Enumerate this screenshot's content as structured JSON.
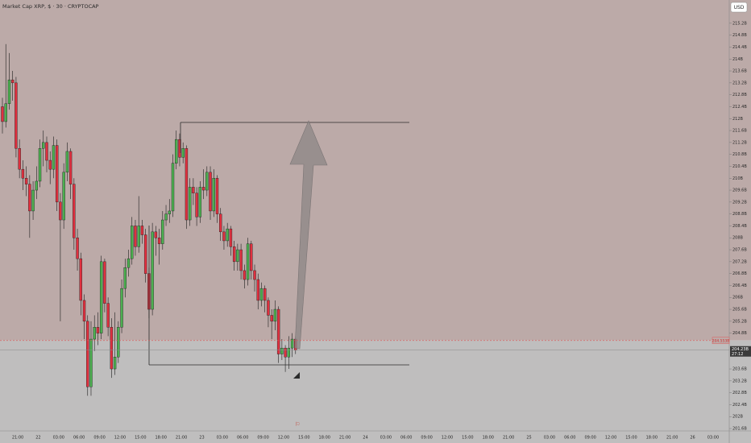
{
  "chart_data": {
    "type": "candlestick",
    "title": "Market Cap XRP, $ · 30 · CRYPTOCAP",
    "currency": "USD",
    "up_color": "#4caf50",
    "down_color": "#e0303f",
    "ylim": [
      201.52,
      215.98
    ],
    "yticks": [
      {
        "value": 215.2,
        "label": "215.2B"
      },
      {
        "value": 214.8,
        "label": "214.8B"
      },
      {
        "value": 214.4,
        "label": "214.4B"
      },
      {
        "value": 214,
        "label": "214B"
      },
      {
        "value": 213.6,
        "label": "213.6B"
      },
      {
        "value": 213.2,
        "label": "213.2B"
      },
      {
        "value": 212.8,
        "label": "212.8B"
      },
      {
        "value": 212.4,
        "label": "212.4B"
      },
      {
        "value": 212,
        "label": "212B"
      },
      {
        "value": 211.6,
        "label": "211.6B"
      },
      {
        "value": 211.2,
        "label": "211.2B"
      },
      {
        "value": 210.8,
        "label": "210.8B"
      },
      {
        "value": 210.4,
        "label": "210.4B"
      },
      {
        "value": 210,
        "label": "210B"
      },
      {
        "value": 209.6,
        "label": "209.6B"
      },
      {
        "value": 209.2,
        "label": "209.2B"
      },
      {
        "value": 208.8,
        "label": "208.8B"
      },
      {
        "value": 208.4,
        "label": "208.4B"
      },
      {
        "value": 208,
        "label": "208B"
      },
      {
        "value": 207.6,
        "label": "207.6B"
      },
      {
        "value": 207.2,
        "label": "207.2B"
      },
      {
        "value": 206.8,
        "label": "206.8B"
      },
      {
        "value": 206.4,
        "label": "206.4B"
      },
      {
        "value": 206,
        "label": "206B"
      },
      {
        "value": 205.6,
        "label": "205.6B"
      },
      {
        "value": 205.2,
        "label": "205.2B"
      },
      {
        "value": 204.8,
        "label": "204.8B"
      },
      {
        "value": 203.6,
        "label": "203.6B"
      },
      {
        "value": 203.2,
        "label": "203.2B"
      },
      {
        "value": 202.8,
        "label": "202.8B"
      },
      {
        "value": 202.4,
        "label": "202.4B"
      },
      {
        "value": 202,
        "label": "202B"
      },
      {
        "value": 201.6,
        "label": "201.6B"
      }
    ],
    "x_labels": [
      "21:00",
      "22",
      "03:00",
      "06:00",
      "09:00",
      "12:00",
      "15:00",
      "18:00",
      "21:00",
      "23",
      "03:00",
      "06:00",
      "09:00",
      "12:00",
      "15:00",
      "18:00",
      "21:00",
      "24",
      "03:00",
      "06:00",
      "09:00",
      "12:00",
      "15:00",
      "18:00",
      "21:00",
      "25",
      "03:00",
      "06:00",
      "09:00",
      "12:00",
      "15:00",
      "18:00",
      "21:00",
      "26",
      "03:00"
    ],
    "open": [
      212.4,
      211.9,
      212.5,
      213.3,
      213.2,
      211.0,
      210.3,
      210.0,
      209.8,
      208.9,
      209.6,
      209.9,
      211.0,
      211.2,
      210.6,
      210.3,
      211.1,
      209.2,
      208.6,
      210.2,
      210.9,
      209.8,
      208.0,
      207.3,
      205.9,
      205.2,
      203.0,
      204.6,
      205.0,
      204.8,
      207.2,
      205.8,
      205.0,
      203.6,
      204.0,
      205.0,
      206.3,
      207.0,
      207.3,
      208.4,
      207.7,
      208.4,
      208.1,
      206.8,
      205.6,
      208.2,
      208.0,
      207.8,
      208.6,
      208.8,
      208.9,
      210.5,
      211.3,
      210.7,
      211.0,
      208.6,
      209.7,
      209.5,
      208.7,
      209.7,
      209.6,
      210.2,
      208.9,
      210.0,
      208.8,
      208.2,
      207.9,
      208.3,
      207.7,
      207.2,
      207.6,
      206.9,
      206.6,
      207.8,
      206.9,
      206.6,
      205.9,
      206.3,
      205.9,
      205.4,
      205.2,
      205.6,
      204.1,
      204.3,
      204.0,
      204.3,
      204.6
    ],
    "high": [
      212.7,
      214.5,
      214.2,
      213.6,
      213.4,
      211.3,
      210.6,
      210.4,
      210.1,
      209.9,
      210.4,
      211.3,
      211.6,
      211.4,
      210.9,
      211.4,
      211.3,
      209.5,
      210.5,
      211.2,
      211.0,
      210.0,
      208.3,
      207.5,
      206.1,
      205.4,
      205.2,
      205.4,
      205.5,
      207.4,
      207.3,
      206.0,
      205.3,
      205.5,
      205.2,
      206.6,
      207.3,
      207.6,
      208.7,
      208.6,
      209.4,
      208.6,
      208.3,
      207.0,
      208.5,
      208.4,
      208.3,
      208.9,
      209.1,
      209.3,
      210.8,
      211.6,
      211.5,
      211.2,
      211.1,
      210.0,
      210.0,
      209.7,
      209.9,
      210.3,
      210.4,
      210.4,
      210.3,
      210.1,
      209.0,
      208.4,
      208.5,
      208.4,
      207.9,
      207.8,
      207.8,
      207.1,
      208.0,
      207.9,
      207.1,
      206.8,
      206.5,
      206.4,
      206.0,
      205.6,
      205.9,
      205.7,
      204.6,
      204.4,
      204.7,
      204.8,
      204.7
    ],
    "low": [
      211.5,
      211.7,
      212.3,
      212.6,
      210.7,
      210.0,
      209.6,
      209.4,
      208.0,
      208.6,
      209.3,
      209.7,
      210.4,
      210.2,
      209.8,
      210.0,
      208.9,
      205.2,
      208.3,
      209.9,
      209.3,
      207.6,
      206.9,
      205.4,
      204.6,
      202.7,
      202.7,
      204.2,
      204.4,
      204.6,
      205.5,
      204.7,
      203.3,
      203.4,
      203.8,
      204.8,
      206.0,
      206.7,
      207.1,
      207.4,
      207.5,
      207.8,
      206.5,
      205.3,
      205.4,
      207.4,
      207.1,
      207.6,
      208.4,
      208.5,
      208.7,
      210.3,
      210.4,
      210.5,
      208.3,
      208.4,
      209.1,
      208.4,
      208.5,
      209.3,
      209.4,
      208.6,
      208.7,
      208.5,
      207.9,
      207.6,
      207.7,
      207.4,
      206.9,
      206.9,
      206.6,
      206.3,
      206.4,
      206.6,
      206.2,
      205.6,
      205.7,
      205.5,
      205.0,
      204.6,
      204.9,
      203.8,
      203.9,
      203.5,
      203.6,
      204.0,
      204.1
    ],
    "close": [
      211.9,
      212.5,
      213.3,
      213.2,
      211.0,
      210.3,
      210.0,
      209.8,
      208.9,
      209.6,
      209.9,
      211.0,
      211.2,
      210.6,
      210.3,
      211.1,
      209.2,
      208.6,
      210.2,
      210.9,
      209.8,
      208.0,
      207.3,
      205.9,
      205.2,
      203.0,
      204.6,
      205.0,
      204.8,
      207.2,
      205.8,
      205.0,
      203.6,
      204.0,
      205.0,
      206.3,
      207.0,
      207.3,
      208.4,
      207.7,
      208.4,
      208.1,
      206.8,
      205.6,
      208.2,
      208.0,
      207.8,
      208.6,
      208.8,
      208.9,
      210.5,
      211.3,
      210.7,
      211.0,
      208.6,
      209.7,
      209.5,
      208.7,
      209.7,
      209.6,
      210.2,
      208.9,
      210.0,
      208.8,
      208.2,
      207.9,
      208.3,
      207.7,
      207.2,
      207.6,
      206.9,
      206.6,
      207.8,
      206.9,
      206.6,
      205.9,
      206.3,
      205.9,
      205.4,
      205.2,
      205.6,
      204.1,
      204.3,
      204.0,
      204.3,
      204.6,
      204.23
    ],
    "last_price_label": "204.23B",
    "countdown": "27:12",
    "alert_line": {
      "value": 204.553,
      "label": "204.553B"
    }
  }
}
